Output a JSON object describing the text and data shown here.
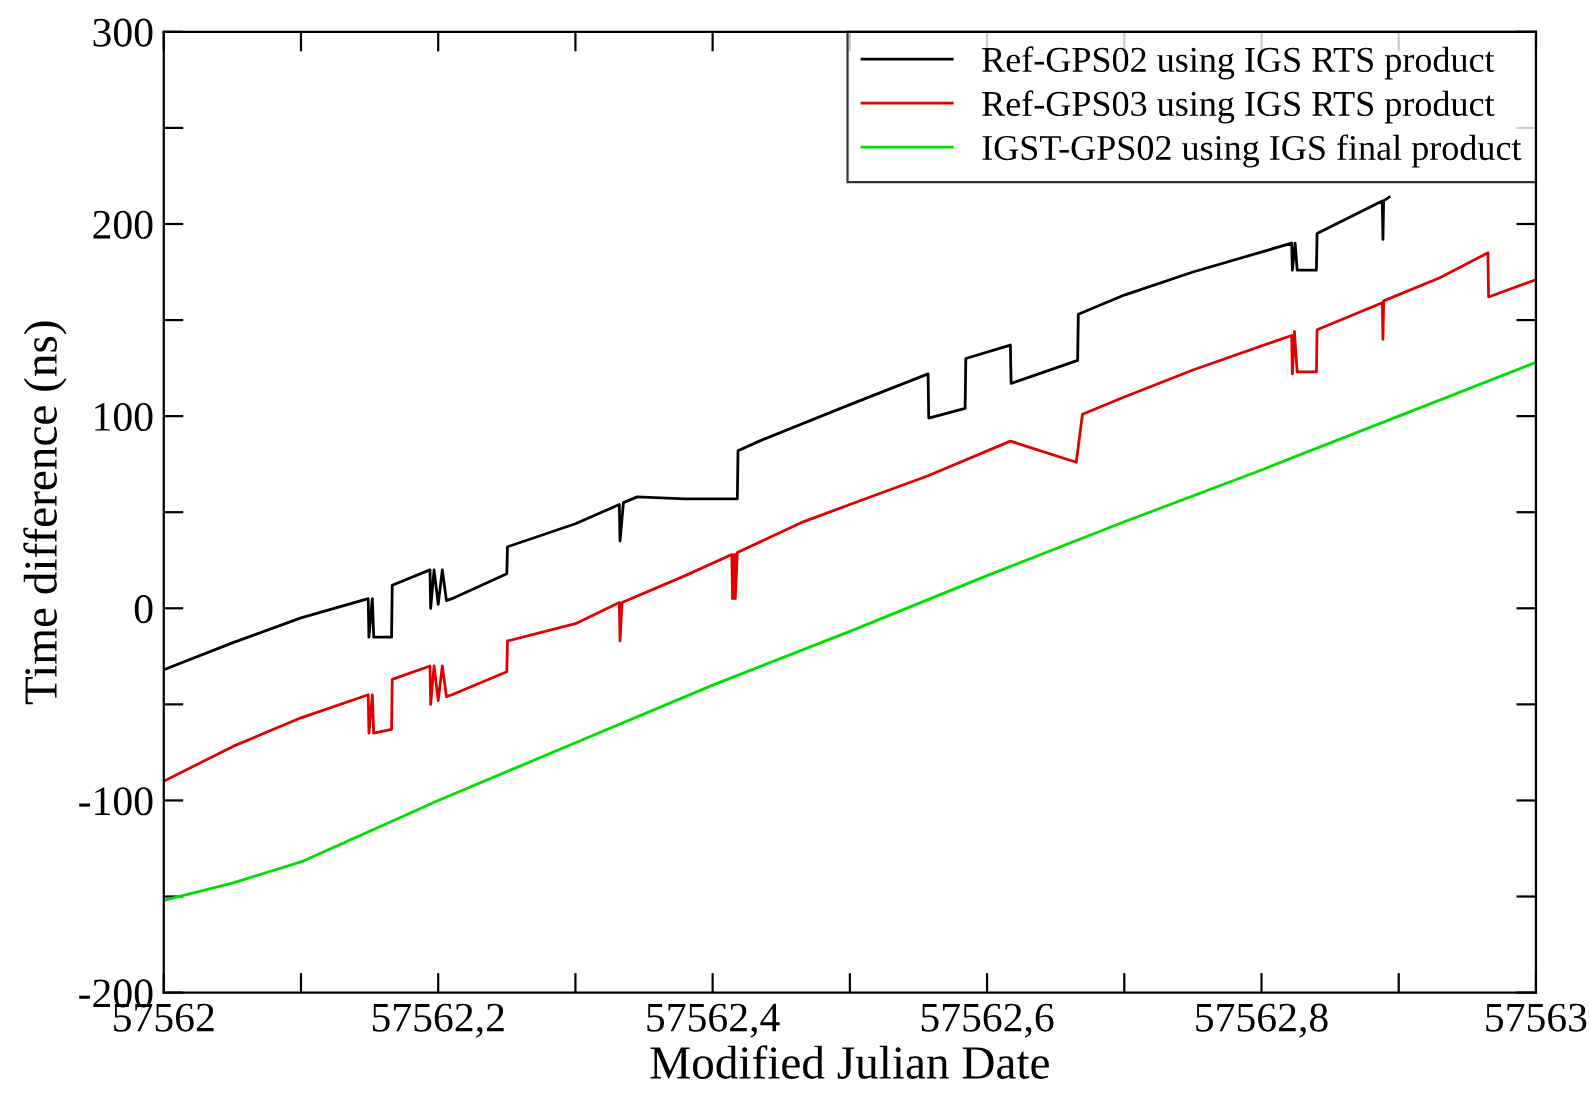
{
  "chart_data": {
    "type": "line",
    "xlabel": "Modified Julian Date",
    "ylabel": "Time difference (ns)",
    "xlim": [
      57562,
      57563
    ],
    "xticks": [
      {
        "value": 57562,
        "label": "57562"
      },
      {
        "value": 57562.1,
        "label": null
      },
      {
        "value": 57562.2,
        "label": "57562,2"
      },
      {
        "value": 57562.3,
        "label": null
      },
      {
        "value": 57562.4,
        "label": "57562,4"
      },
      {
        "value": 57562.5,
        "label": null
      },
      {
        "value": 57562.6,
        "label": "57562,6"
      },
      {
        "value": 57562.7,
        "label": null
      },
      {
        "value": 57562.8,
        "label": "57562,8"
      },
      {
        "value": 57562.9,
        "label": null
      },
      {
        "value": 57563,
        "label": "57563"
      }
    ],
    "ylim": [
      -200,
      300
    ],
    "yticks": [
      -200,
      {
        "value": -150,
        "label": null
      },
      -100,
      {
        "value": -50,
        "label": null
      },
      0,
      {
        "value": 50,
        "label": null
      },
      100,
      {
        "value": 150,
        "label": null
      },
      200,
      {
        "value": 250,
        "label": null
      },
      300
    ],
    "grid": false,
    "legend": "top right",
    "marker": "none",
    "line_style": "solid",
    "series": [
      {
        "name": "Ref-GPS02 using IGS RTS product",
        "color": "#000000",
        "x": [
          57562,
          57562.05,
          57562.1,
          57562.149,
          57562.1495,
          57562.152,
          57562.153,
          57562.166,
          57562.1665,
          57562.194,
          57562.1945,
          57562.197,
          57562.2,
          57562.203,
          57562.206,
          57562.21,
          57562.25,
          57562.2505,
          57562.3,
          57562.332,
          57562.3325,
          57562.335,
          57562.345,
          57562.38,
          57562.418,
          57562.4185,
          57562.434,
          57562.5,
          57562.557,
          57562.5575,
          57562.584,
          57562.5845,
          57562.617,
          57562.6175,
          57562.666,
          57562.6665,
          57562.7,
          57562.75,
          57562.822,
          57562.8225,
          57562.8245,
          57562.826,
          57562.84,
          57562.8405,
          57562.888,
          57562.8885,
          57562.889,
          57562.893
        ],
        "values": [
          -32,
          -18,
          -5,
          5,
          -15,
          5,
          -15,
          -15,
          12,
          20,
          0,
          20,
          2,
          20,
          4,
          5,
          18,
          32,
          44,
          54,
          35,
          55,
          58,
          57,
          57,
          82,
          87,
          106,
          122,
          99,
          104,
          130,
          137,
          117,
          129,
          153,
          163,
          175,
          190,
          176,
          190,
          176,
          176,
          195,
          212,
          192,
          212,
          214
        ]
      },
      {
        "name": "Ref-GPS03 using IGS RTS product",
        "color": "#e00000",
        "x": [
          57562,
          57562.05,
          57562.1,
          57562.149,
          57562.1495,
          57562.152,
          57562.153,
          57562.166,
          57562.1665,
          57562.194,
          57562.1945,
          57562.197,
          57562.2,
          57562.203,
          57562.206,
          57562.21,
          57562.25,
          57562.2505,
          57562.3,
          57562.332,
          57562.3325,
          57562.334,
          57562.38,
          57562.414,
          57562.4145,
          57562.416,
          57562.4165,
          57562.418,
          57562.466,
          57562.5,
          57562.557,
          57562.617,
          57562.665,
          57562.6695,
          57562.7,
          57562.75,
          57562.822,
          57562.8225,
          57562.824,
          57562.826,
          57562.84,
          57562.8405,
          57562.888,
          57562.8885,
          57562.889,
          57562.93,
          57562.965,
          57562.9655,
          57563
        ],
        "values": [
          -90,
          -72,
          -57,
          -45,
          -65,
          -45,
          -65,
          -63,
          -37,
          -30,
          -50,
          -30,
          -48,
          -30,
          -46,
          -45,
          -33,
          -17,
          -8,
          3,
          -17,
          3,
          17,
          28,
          5,
          28,
          5,
          29,
          45,
          54,
          69,
          87,
          76,
          101,
          110,
          124,
          142,
          122,
          144,
          123,
          123,
          145,
          159,
          140,
          160,
          172,
          185,
          162,
          171
        ]
      },
      {
        "name": "IGST-GPS02 using IGS final product",
        "color": "#00dd00",
        "x": [
          57562,
          57562.05,
          57562.1,
          57562.15,
          57562.2,
          57562.3,
          57562.4,
          57562.5,
          57562.6,
          57562.7,
          57562.8,
          57562.9,
          57563
        ],
        "values": [
          -152,
          -143,
          -132,
          -116,
          -100,
          -70,
          -40,
          -12,
          17,
          45,
          72,
          100,
          128
        ]
      }
    ]
  }
}
